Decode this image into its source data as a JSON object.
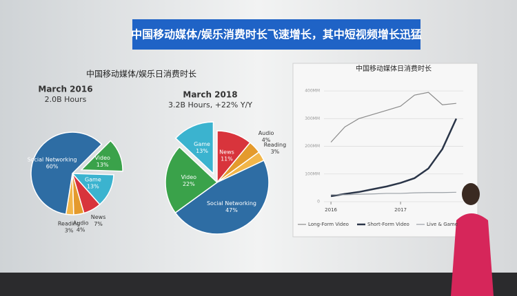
{
  "header": {
    "title": "中国移动媒体/娱乐消费时长飞速增长，其中短视频增长迅猛",
    "section_title": "中国移动媒体/娱乐日消费时长"
  },
  "chart_data": [
    {
      "type": "pie",
      "title": "March 2016",
      "subtitle": "2.0B Hours",
      "categories": [
        "Video",
        "Game",
        "News",
        "Audio",
        "Reading",
        "Social Networking"
      ],
      "values": [
        13,
        13,
        7,
        4,
        3,
        60
      ],
      "value_labels": [
        "13%",
        "13%",
        "7%",
        "4%",
        "3%",
        "60%"
      ],
      "colors": [
        "#3aa24a",
        "#3bb3cf",
        "#d8343c",
        "#e49a2c",
        "#f2b64a",
        "#2e6da4"
      ],
      "exploded": "Video"
    },
    {
      "type": "pie",
      "title": "March 2018",
      "subtitle": "3.2B Hours, +22% Y/Y",
      "categories": [
        "News",
        "Audio",
        "Reading",
        "Social Networking",
        "Video",
        "Game"
      ],
      "values": [
        11,
        4,
        3,
        47,
        22,
        13
      ],
      "value_labels": [
        "11%",
        "4%",
        "3%",
        "47%",
        "22%",
        "13%"
      ],
      "colors": [
        "#d8343c",
        "#e49a2c",
        "#f2b64a",
        "#2e6da4",
        "#3aa24a",
        "#3bb3cf"
      ],
      "exploded": "Game"
    },
    {
      "type": "line",
      "title": "中国移动媒体日消费时长",
      "x": [
        2016.0,
        2016.2,
        2016.4,
        2016.6,
        2016.8,
        2017.0,
        2017.2,
        2017.4,
        2017.6,
        2017.8
      ],
      "xlim": [
        2015.9,
        2017.9
      ],
      "xticks": [
        2016,
        2017
      ],
      "ylim": [
        0,
        450
      ],
      "yticks": [
        0,
        {
          "value": 100,
          "label": "100MM"
        },
        {
          "value": 200,
          "label": "200MM"
        },
        {
          "value": 300,
          "label": "300MM"
        },
        {
          "value": 400,
          "label": "400MM"
        }
      ],
      "grid": true,
      "series": [
        {
          "name": "Long-Form Video",
          "color": "#8a8a8a",
          "values": [
            215,
            270,
            300,
            315,
            330,
            345,
            385,
            395,
            350,
            355
          ]
        },
        {
          "name": "Short-Form Video",
          "color": "#2a3548",
          "values": [
            20,
            28,
            35,
            45,
            55,
            68,
            85,
            120,
            190,
            300
          ]
        },
        {
          "name": "Live & Game",
          "color": "#9aa0a6",
          "values": [
            25,
            25,
            27,
            28,
            30,
            30,
            32,
            33,
            33,
            34
          ]
        }
      ]
    }
  ]
}
